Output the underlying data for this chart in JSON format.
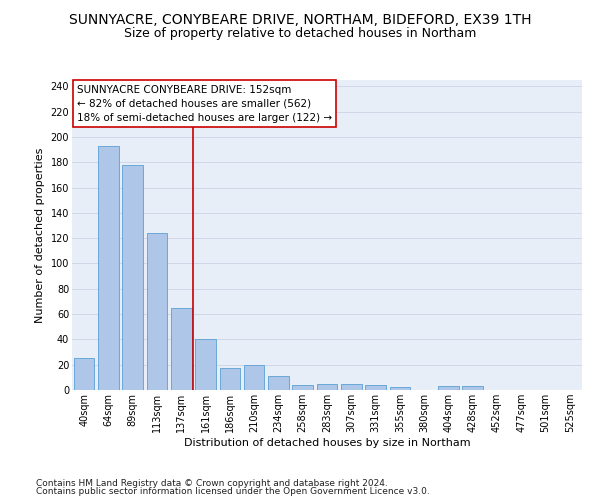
{
  "title": "SUNNYACRE, CONYBEARE DRIVE, NORTHAM, BIDEFORD, EX39 1TH",
  "subtitle": "Size of property relative to detached houses in Northam",
  "xlabel": "Distribution of detached houses by size in Northam",
  "ylabel": "Number of detached properties",
  "categories": [
    "40sqm",
    "64sqm",
    "89sqm",
    "113sqm",
    "137sqm",
    "161sqm",
    "186sqm",
    "210sqm",
    "234sqm",
    "258sqm",
    "283sqm",
    "307sqm",
    "331sqm",
    "355sqm",
    "380sqm",
    "404sqm",
    "428sqm",
    "452sqm",
    "477sqm",
    "501sqm",
    "525sqm"
  ],
  "values": [
    25,
    193,
    178,
    124,
    65,
    40,
    17,
    20,
    11,
    4,
    5,
    5,
    4,
    2,
    0,
    3,
    3,
    0,
    0,
    0,
    0
  ],
  "bar_color": "#aec6e8",
  "bar_edge_color": "#5a9fd4",
  "vline_color": "#cc0000",
  "annotation_text": "SUNNYACRE CONYBEARE DRIVE: 152sqm\n← 82% of detached houses are smaller (562)\n18% of semi-detached houses are larger (122) →",
  "annotation_box_color": "#ffffff",
  "annotation_box_edge": "#cc0000",
  "ylim": [
    0,
    245
  ],
  "yticks": [
    0,
    20,
    40,
    60,
    80,
    100,
    120,
    140,
    160,
    180,
    200,
    220,
    240
  ],
  "grid_color": "#d0d8e8",
  "bg_color": "#e8eef8",
  "footer1": "Contains HM Land Registry data © Crown copyright and database right 2024.",
  "footer2": "Contains public sector information licensed under the Open Government Licence v3.0.",
  "title_fontsize": 10,
  "subtitle_fontsize": 9,
  "axis_label_fontsize": 8,
  "tick_fontsize": 7,
  "annotation_fontsize": 7.5,
  "footer_fontsize": 6.5
}
